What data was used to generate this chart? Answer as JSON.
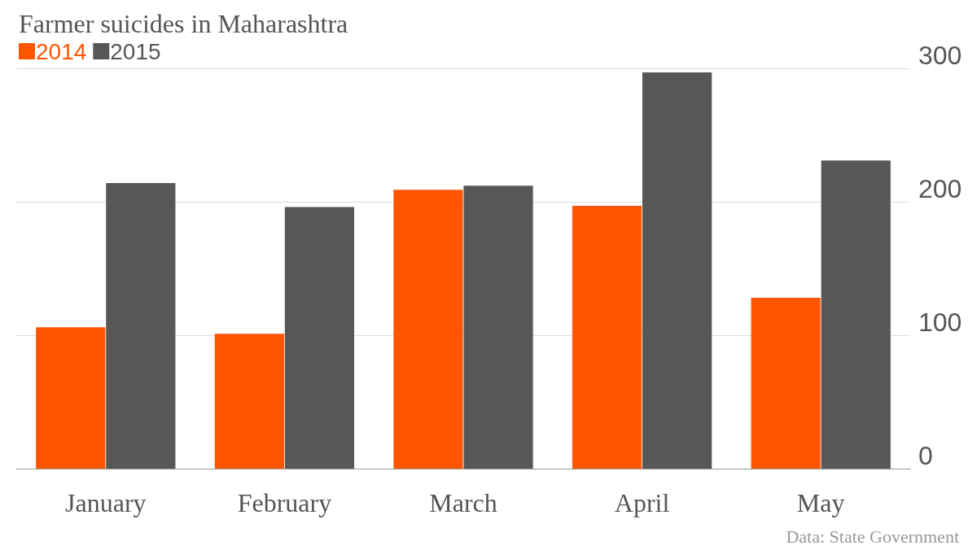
{
  "chart_data": {
    "type": "bar",
    "title": "Farmer suicides in Maharashtra",
    "categories": [
      "January",
      "February",
      "March",
      "April",
      "May"
    ],
    "series": [
      {
        "name": "2014",
        "color": "#ff5500",
        "values": [
          106,
          101,
          209,
          197,
          128
        ]
      },
      {
        "name": "2015",
        "color": "#575756",
        "values": [
          214,
          196,
          212,
          297,
          231
        ]
      }
    ],
    "ylim": [
      0,
      300
    ],
    "yticks": [
      0,
      100,
      200,
      300
    ],
    "grid": "y",
    "legend": "top left",
    "annotations": [
      "Data: State Government"
    ]
  }
}
